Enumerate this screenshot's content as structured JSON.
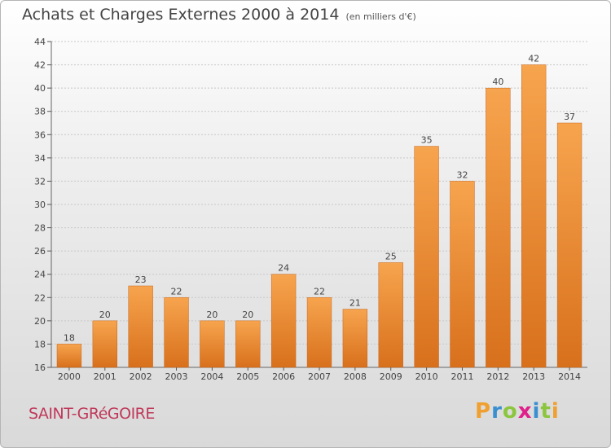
{
  "chart_title": "Achats et Charges Externes 2000 à 2014",
  "chart_unit": "(en milliers d'€)",
  "commune": "SAINT-GRéGOIRE",
  "brand": {
    "letters": [
      "P",
      "r",
      "o",
      "x",
      "i",
      "t",
      "i"
    ],
    "colors": [
      "#f0a030",
      "#3a8fd0",
      "#8cc63f",
      "#e0208a",
      "#3a8fd0",
      "#8cc63f",
      "#f0a030"
    ]
  },
  "colors": {
    "bar_light": "#f7a44e",
    "bar_dark": "#d8701c",
    "commune_text": "#c0395a",
    "grid": "#c8c8c8"
  },
  "chart_data": {
    "type": "bar",
    "categories": [
      "2000",
      "2001",
      "2002",
      "2003",
      "2004",
      "2005",
      "2006",
      "2007",
      "2008",
      "2009",
      "2010",
      "2011",
      "2012",
      "2013",
      "2014"
    ],
    "values": [
      18,
      20,
      23,
      22,
      20,
      20,
      24,
      22,
      21,
      25,
      35,
      32,
      40,
      42,
      37
    ],
    "title": "Achats et Charges Externes 2000 à 2014",
    "xlabel": "",
    "ylabel": "",
    "ylim": [
      16,
      44
    ],
    "yticks": [
      16,
      18,
      20,
      22,
      24,
      26,
      28,
      30,
      32,
      34,
      36,
      38,
      40,
      42,
      44
    ],
    "grid": true,
    "data_labels": true
  }
}
